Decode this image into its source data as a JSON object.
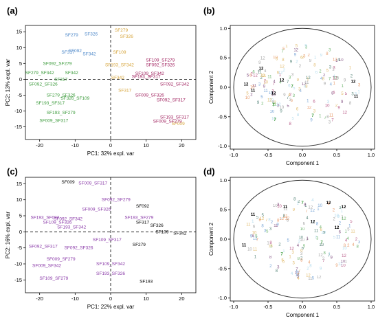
{
  "panel_tags": [
    "(a)",
    "(b)",
    "(c)",
    "(d)"
  ],
  "colors": {
    "blue": "#4a86c8",
    "green": "#3a9a3a",
    "gold": "#d6a43a",
    "magenta": "#a0205e",
    "purple": "#8a3aa8",
    "black": "#000000"
  },
  "chart_data": [
    {
      "type": "scatter",
      "panel": "(a)",
      "xlabel": "PC1: 32% expl. var",
      "ylabel": "PC2: 13% expl. var",
      "xlim": [
        -24,
        24
      ],
      "ylim": [
        -19,
        17
      ],
      "xticks": [
        -20,
        -10,
        0,
        10,
        20
      ],
      "yticks": [
        -15,
        -10,
        -5,
        0,
        5,
        10,
        15
      ],
      "reference_lines": {
        "x": 0,
        "y": 0
      },
      "points": [
        {
          "label": "SF279",
          "x": -11,
          "y": 14,
          "color": "blue"
        },
        {
          "label": "SF326",
          "x": -5.5,
          "y": 14.3,
          "color": "blue"
        },
        {
          "label": "SF092",
          "x": -10,
          "y": 9,
          "color": "blue"
        },
        {
          "label": "SF317",
          "x": -12,
          "y": 8.5,
          "color": "blue"
        },
        {
          "label": "SF342",
          "x": -6,
          "y": 8,
          "color": "blue"
        },
        {
          "label": "SF092_SF279",
          "x": -15,
          "y": 5,
          "color": "green"
        },
        {
          "label": "SF279_SF342",
          "x": -20,
          "y": 2,
          "color": "green"
        },
        {
          "label": "SF342",
          "x": -11,
          "y": 2,
          "color": "green"
        },
        {
          "label": "SF317",
          "x": -14,
          "y": 0,
          "color": "green"
        },
        {
          "label": "SF092_SF326",
          "x": -19,
          "y": -1.5,
          "color": "green"
        },
        {
          "label": "SF279_SF326",
          "x": -14,
          "y": -5,
          "color": "green"
        },
        {
          "label": "SF326_SF109",
          "x": -10,
          "y": -6,
          "color": "green"
        },
        {
          "label": "SF193_SF317",
          "x": -17,
          "y": -7.5,
          "color": "green"
        },
        {
          "label": "SF193_SF279",
          "x": -14,
          "y": -10.5,
          "color": "green"
        },
        {
          "label": "SF009_SF317",
          "x": -16,
          "y": -13,
          "color": "green"
        },
        {
          "label": "SF279",
          "x": 3,
          "y": 15.5,
          "color": "gold"
        },
        {
          "label": "SF326",
          "x": 4.5,
          "y": 13.5,
          "color": "gold"
        },
        {
          "label": "SF109",
          "x": 2.5,
          "y": 8.5,
          "color": "gold"
        },
        {
          "label": "SF193_SF342",
          "x": 2.5,
          "y": 4.5,
          "color": "gold"
        },
        {
          "label": "SF342",
          "x": 2,
          "y": 0.5,
          "color": "gold"
        },
        {
          "label": "SF317",
          "x": 4,
          "y": -3.5,
          "color": "gold"
        },
        {
          "label": "SF009",
          "x": 19,
          "y": -14,
          "color": "gold"
        },
        {
          "label": "SF109_SF279",
          "x": 14,
          "y": 6,
          "color": "magenta"
        },
        {
          "label": "SF092_SF326",
          "x": 14,
          "y": 4.5,
          "color": "magenta"
        },
        {
          "label": "SF109_SF342",
          "x": 11,
          "y": 1.8,
          "color": "magenta"
        },
        {
          "label": "SF193_SF317",
          "x": 10,
          "y": 0.8,
          "color": "magenta"
        },
        {
          "label": "SF092_SF342",
          "x": 18,
          "y": -1.5,
          "color": "magenta"
        },
        {
          "label": "SF009_SF326",
          "x": 11,
          "y": -5,
          "color": "magenta"
        },
        {
          "label": "SF092_SF317",
          "x": 17,
          "y": -6.5,
          "color": "magenta"
        },
        {
          "label": "SF193_SF317",
          "x": 18,
          "y": -12,
          "color": "magenta"
        },
        {
          "label": "SF009_SF279",
          "x": 16,
          "y": -13.3,
          "color": "magenta"
        }
      ]
    },
    {
      "type": "scatter",
      "panel": "(b)",
      "xlabel": "Component 1",
      "ylabel": "Component 2",
      "xlim": [
        -1.05,
        1.05
      ],
      "ylim": [
        -1.05,
        1.05
      ],
      "xticks": [
        -1.0,
        -0.5,
        0.0,
        0.5,
        1.0
      ],
      "yticks": [
        -1.0,
        -0.5,
        0.0,
        0.5,
        1.0
      ],
      "correlation_circle": true,
      "variables": [
        {
          "label": "12",
          "x": -0.82,
          "y": 0.05,
          "color": "black"
        },
        {
          "label": "11",
          "x": -0.72,
          "y": -0.05,
          "color": "black"
        },
        {
          "label": "12",
          "x": -0.6,
          "y": 0.32,
          "color": "black"
        },
        {
          "label": "12",
          "x": -0.42,
          "y": -0.1,
          "color": "black"
        },
        {
          "label": "12",
          "x": -0.3,
          "y": 0.12,
          "color": "black"
        },
        {
          "label": "11",
          "x": 0.78,
          "y": -0.15,
          "color": "black"
        },
        {
          "label": "12",
          "x": 0.74,
          "y": 0.1,
          "color": "black"
        },
        {
          "label": "7",
          "x": -0.4,
          "y": -0.55,
          "color": "green"
        },
        {
          "label": "7",
          "x": -0.15,
          "y": 0.02,
          "color": "green"
        },
        {
          "label": "7",
          "x": -0.42,
          "y": -0.3,
          "color": "green"
        },
        {
          "label": "7",
          "x": 0.15,
          "y": -0.48,
          "color": "green"
        }
      ]
    },
    {
      "type": "scatter",
      "panel": "(c)",
      "xlabel": "PC1: 22% expl. var",
      "ylabel": "PC2: 16% expl. var",
      "xlim": [
        -24,
        24
      ],
      "ylim": [
        -19,
        17
      ],
      "xticks": [
        -20,
        -10,
        0,
        10,
        20
      ],
      "yticks": [
        -15,
        -10,
        -5,
        0,
        5,
        10,
        15
      ],
      "reference_lines": {
        "x": 0,
        "y": 0
      },
      "points": [
        {
          "label": "SF009",
          "x": -12,
          "y": 15.5,
          "color": "black"
        },
        {
          "label": "SF092",
          "x": 9,
          "y": 8,
          "color": "black"
        },
        {
          "label": "SF317",
          "x": 9,
          "y": 3,
          "color": "black"
        },
        {
          "label": "SF326",
          "x": 13,
          "y": 2,
          "color": "black"
        },
        {
          "label": "SF109",
          "x": 14.5,
          "y": 0,
          "color": "black"
        },
        {
          "label": "SF342",
          "x": 19.5,
          "y": -0.5,
          "color": "black"
        },
        {
          "label": "SF279",
          "x": 8,
          "y": -4,
          "color": "black"
        },
        {
          "label": "SF193",
          "x": 10,
          "y": -15.5,
          "color": "black"
        },
        {
          "label": "SF009_SF317",
          "x": -5,
          "y": 15.2,
          "color": "purple"
        },
        {
          "label": "SF092_SF279",
          "x": 1.5,
          "y": 10,
          "color": "purple"
        },
        {
          "label": "SF009_SF326",
          "x": -4,
          "y": 7,
          "color": "purple"
        },
        {
          "label": "SF193_SF279",
          "x": 8,
          "y": 4.5,
          "color": "purple"
        },
        {
          "label": "SF193_SF092",
          "x": -18.5,
          "y": 4.5,
          "color": "purple"
        },
        {
          "label": "SF092_SF342",
          "x": -12,
          "y": 4,
          "color": "purple"
        },
        {
          "label": "SF109_SF326",
          "x": -15,
          "y": 3,
          "color": "purple"
        },
        {
          "label": "SF193_SF342",
          "x": -11,
          "y": 1.5,
          "color": "purple"
        },
        {
          "label": "SF109_SF317",
          "x": -1,
          "y": -2.5,
          "color": "purple"
        },
        {
          "label": "SF092_SF317",
          "x": -19,
          "y": -4.5,
          "color": "purple"
        },
        {
          "label": "SF092_SF326",
          "x": -9,
          "y": -5,
          "color": "purple"
        },
        {
          "label": "SF009_SF279",
          "x": -14,
          "y": -8.5,
          "color": "purple"
        },
        {
          "label": "SF109_SF342",
          "x": 0,
          "y": -10,
          "color": "purple"
        },
        {
          "label": "SF009_SF342",
          "x": -18,
          "y": -10.5,
          "color": "purple"
        },
        {
          "label": "SF193_SF326",
          "x": 0,
          "y": -13,
          "color": "purple"
        },
        {
          "label": "SF109_SF279",
          "x": -16,
          "y": -14.5,
          "color": "purple"
        }
      ]
    },
    {
      "type": "scatter",
      "panel": "(d)",
      "xlabel": "Component 1",
      "ylabel": "Component 2",
      "xlim": [
        -1.05,
        1.05
      ],
      "ylim": [
        -1.05,
        1.05
      ],
      "xticks": [
        -1.0,
        -0.5,
        0.0,
        0.5,
        1.0
      ],
      "yticks": [
        -1.0,
        -0.5,
        0.0,
        0.5,
        1.0
      ],
      "correlation_circle": true,
      "variables": [
        {
          "label": "11",
          "x": -0.72,
          "y": 0.42,
          "color": "black"
        },
        {
          "label": "11",
          "x": -0.25,
          "y": 0.55,
          "color": "black"
        },
        {
          "label": "12",
          "x": 0.38,
          "y": 0.62,
          "color": "black"
        },
        {
          "label": "12",
          "x": 0.6,
          "y": 0.55,
          "color": "black"
        },
        {
          "label": "12",
          "x": 0.15,
          "y": 0.3,
          "color": "black"
        },
        {
          "label": "12",
          "x": 0.5,
          "y": 0.2,
          "color": "black"
        },
        {
          "label": "11",
          "x": -0.85,
          "y": -0.1,
          "color": "black"
        },
        {
          "label": "7",
          "x": 0.0,
          "y": 0.62,
          "color": "green"
        },
        {
          "label": "7",
          "x": 0.28,
          "y": -0.05,
          "color": "green"
        },
        {
          "label": "7",
          "x": -0.3,
          "y": -0.25,
          "color": "green"
        }
      ]
    }
  ]
}
